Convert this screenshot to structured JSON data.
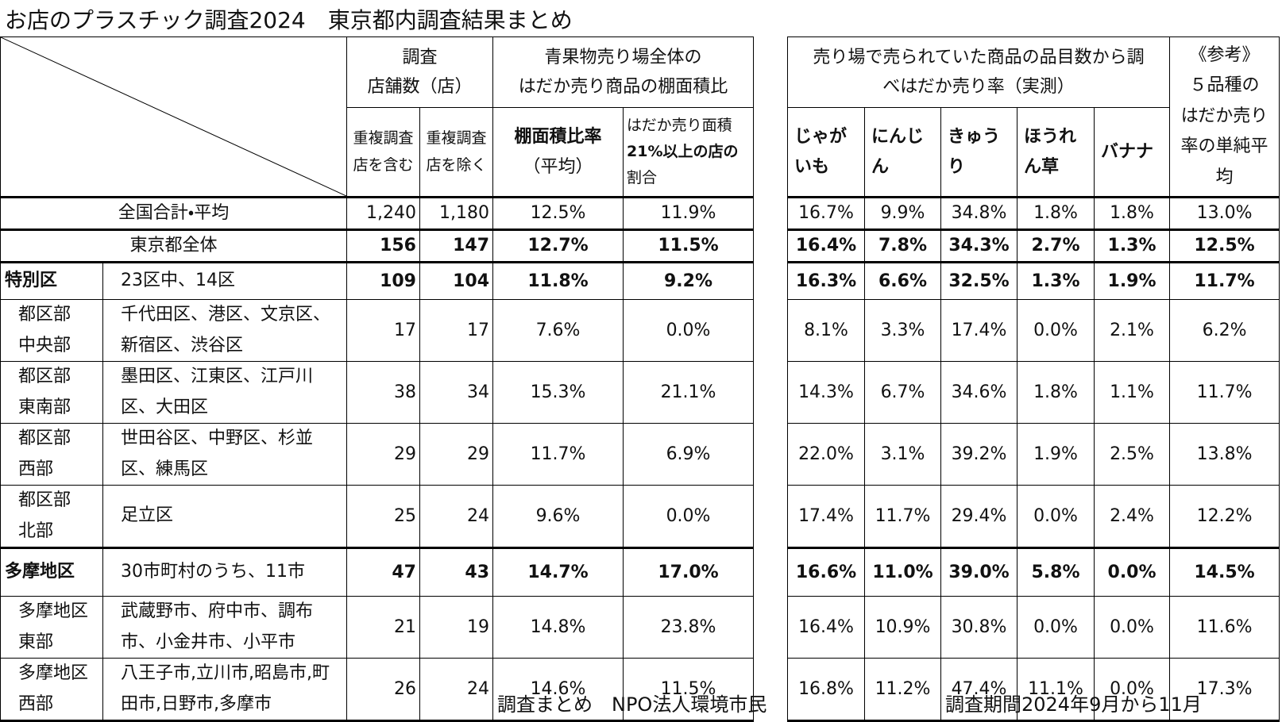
{
  "title": "お店のプラスチック調査2024　東京都内調査結果まとめ",
  "headers": {
    "stores": [
      "調査",
      "店舗数（店）"
    ],
    "shelf_group": [
      "青果物売り場全体の",
      "はだか売り商品の棚面積比"
    ],
    "survey_group": [
      "売り場で売られていた商品の品目数から調",
      "べはだか売り率（実測）"
    ],
    "reference": [
      "《参考》",
      "５品種の",
      "はだか売り",
      "率の単純平",
      "均"
    ],
    "stores_incl": [
      "重複調査",
      "店を含む"
    ],
    "stores_excl": [
      "重複調査",
      "店を除く"
    ],
    "shelf_ratio": [
      "棚面積比率",
      "（平均）"
    ],
    "share21": [
      "はだか売り面積",
      "21%以上の店の",
      "割合"
    ],
    "potato": [
      "じゃが",
      "いも"
    ],
    "carrot": [
      "にんじ",
      "ん"
    ],
    "cucumber": [
      "きゅう",
      "り"
    ],
    "spinach": [
      "ほうれ",
      "ん草"
    ],
    "banana": [
      "バナナ"
    ]
  },
  "rows": [
    {
      "label": "全国合計・平均",
      "bold": false,
      "values": [
        "1,240",
        "1,180",
        "12.5%",
        "11.9%",
        "16.7%",
        "9.9%",
        "34.8%",
        "1.8%",
        "1.8%",
        "13.0%"
      ]
    },
    {
      "label": "東京都全体",
      "bold": true,
      "values": [
        "156",
        "147",
        "12.7%",
        "11.5%",
        "16.4%",
        "7.8%",
        "34.3%",
        "2.7%",
        "1.3%",
        "12.5%"
      ]
    },
    {
      "region": [
        "特別区"
      ],
      "area": "23区中、14区",
      "bold": true,
      "values": [
        "109",
        "104",
        "11.8%",
        "9.2%",
        "16.3%",
        "6.6%",
        "32.5%",
        "1.3%",
        "1.9%",
        "11.7%"
      ]
    },
    {
      "region": [
        "都区部",
        "中央部"
      ],
      "area": "千代田区、港区、文京区、新宿区、渋谷区",
      "bold": false,
      "values": [
        "17",
        "17",
        "7.6%",
        "0.0%",
        "8.1%",
        "3.3%",
        "17.4%",
        "0.0%",
        "2.1%",
        "6.2%"
      ]
    },
    {
      "region": [
        "都区部",
        "東南部"
      ],
      "area": "墨田区、江東区、江戸川区、大田区",
      "bold": false,
      "values": [
        "38",
        "34",
        "15.3%",
        "21.1%",
        "14.3%",
        "6.7%",
        "34.6%",
        "1.8%",
        "1.1%",
        "11.7%"
      ]
    },
    {
      "region": [
        "都区部",
        "西部"
      ],
      "area": "世田谷区、中野区、杉並区、練馬区",
      "bold": false,
      "values": [
        "29",
        "29",
        "11.7%",
        "6.9%",
        "22.0%",
        "3.1%",
        "39.2%",
        "1.9%",
        "2.5%",
        "13.8%"
      ]
    },
    {
      "region": [
        "都区部",
        "北部"
      ],
      "area": "足立区",
      "bold": false,
      "values": [
        "25",
        "24",
        "9.6%",
        "0.0%",
        "17.4%",
        "11.7%",
        "29.4%",
        "0.0%",
        "2.4%",
        "12.2%"
      ]
    },
    {
      "region": [
        "多摩地区"
      ],
      "area": "30市町村のうち、11市",
      "bold": true,
      "values": [
        "47",
        "43",
        "14.7%",
        "17.0%",
        "16.6%",
        "11.0%",
        "39.0%",
        "5.8%",
        "0.0%",
        "14.5%"
      ]
    },
    {
      "region": [
        "多摩地区",
        "東部"
      ],
      "area": "武蔵野市、府中市、調布市、小金井市、小平市",
      "bold": false,
      "values": [
        "21",
        "19",
        "14.8%",
        "23.8%",
        "16.4%",
        "10.9%",
        "30.8%",
        "0.0%",
        "0.0%",
        "11.6%"
      ]
    },
    {
      "region": [
        "多摩地区",
        "西部"
      ],
      "area": "八王子市,立川市,昭島市,町田市,日野市,多摩市",
      "bold": false,
      "values": [
        "26",
        "24",
        "14.6%",
        "11.5%",
        "16.8%",
        "11.2%",
        "47.4%",
        "11.1%",
        "0.0%",
        "17.3%"
      ]
    }
  ],
  "footer": {
    "compiled_by": "調査まとめ　NPO法人環境市民",
    "period": "調査期間2024年9月から11月"
  }
}
